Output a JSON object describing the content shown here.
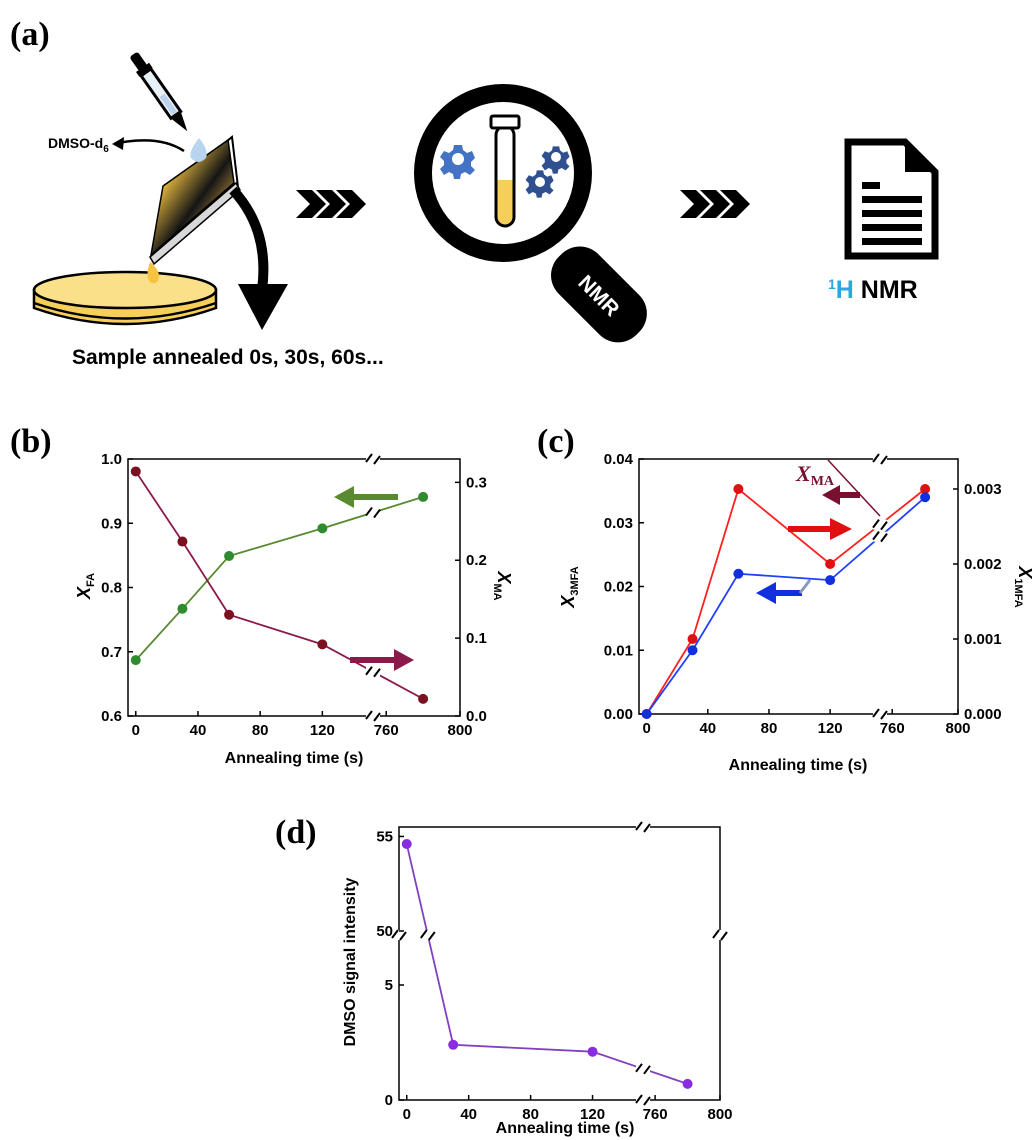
{
  "panels": {
    "a": "(a)",
    "b": "(b)",
    "c": "(c)",
    "d": "(d)"
  },
  "scheme": {
    "solvent_label": "DMSO-d",
    "solvent_sub": "6",
    "caption": "Sample annealed 0s, 30s, 60s...",
    "nmr_text": "NMR",
    "result_sup": "1",
    "result_h": "H",
    "result_rest": " NMR",
    "colors": {
      "gear": "#4472c4",
      "gear_dark": "#2f4f8f",
      "solution": "#f5cf5a",
      "result_accent": "#29a8e0"
    }
  },
  "chart_data": [
    {
      "id": "b",
      "type": "line",
      "xlabel": "Annealing time (s)",
      "ylabel_left": "X",
      "ylabel_left_sub": "FA",
      "ylabel_right": "X",
      "ylabel_right_sub": "MA",
      "x": [
        0,
        30,
        60,
        120,
        780
      ],
      "x_ticks": [
        "0",
        "40",
        "80",
        "120",
        "760",
        "800"
      ],
      "ylim_left": [
        0.6,
        1.0
      ],
      "y_ticks_left": [
        "0.6",
        "0.7",
        "0.8",
        "0.9",
        "1.0"
      ],
      "ylim_right": [
        0.0,
        0.33
      ],
      "y_ticks_right": [
        "0.0",
        "0.1",
        "0.2",
        "0.3"
      ],
      "series": [
        {
          "axis": "left",
          "values": [
            0.687,
            0.767,
            0.849,
            0.892,
            0.941
          ],
          "color": "#2e8b2e",
          "line": "#5a8a30"
        },
        {
          "axis": "right",
          "values": [
            0.314,
            0.224,
            0.13,
            0.092,
            0.022
          ],
          "color": "#7a1020",
          "line": "#8b1a4a"
        }
      ],
      "break_x": true
    },
    {
      "id": "c",
      "type": "line",
      "xlabel": "Annealing time (s)",
      "ylabel_left": "X",
      "ylabel_left_sub": "3MFA",
      "ylabel_right": "X",
      "ylabel_right_sub": "1MFA",
      "annotation": "X",
      "annotation_sub": "MA",
      "x": [
        0,
        30,
        60,
        120,
        780
      ],
      "x_ticks": [
        "0",
        "40",
        "80",
        "120",
        "760",
        "800"
      ],
      "ylim_left": [
        0.0,
        0.04
      ],
      "y_ticks_left": [
        "0.00",
        "0.01",
        "0.02",
        "0.03",
        "0.04"
      ],
      "ylim_right": [
        0.0,
        0.0034
      ],
      "y_ticks_right": [
        "0.000",
        "0.001",
        "0.002",
        "0.003"
      ],
      "series": [
        {
          "axis": "right",
          "values": [
            0.0,
            0.001,
            0.003,
            0.002,
            0.003
          ],
          "color": "#e01010",
          "line": "#ff2020"
        },
        {
          "axis": "left",
          "values": [
            0.0,
            0.01,
            0.022,
            0.021,
            0.034
          ],
          "color": "#1030e0",
          "line": "#2040ff"
        }
      ],
      "break_x": true
    },
    {
      "id": "d",
      "type": "line",
      "xlabel": "Annealing time (s)",
      "ylabel": "DMSO signal intensity",
      "x": [
        0,
        30,
        120,
        780
      ],
      "x_ticks": [
        "0",
        "40",
        "80",
        "120",
        "760",
        "800"
      ],
      "y_ticks": [
        "0",
        "5",
        "50",
        "55"
      ],
      "series": [
        {
          "values": [
            54.6,
            2.4,
            2.1,
            0.7
          ],
          "color": "#8a2be2",
          "line": "#8040c0"
        }
      ],
      "break_x": true,
      "break_y": true
    }
  ]
}
